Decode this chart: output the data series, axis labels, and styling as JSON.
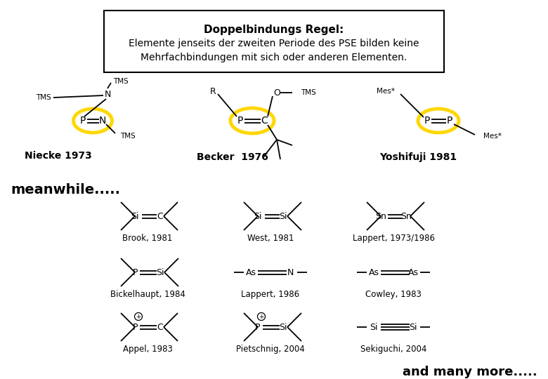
{
  "bg_color": "#ffffff",
  "fig_width": 7.8,
  "fig_height": 5.4,
  "box_title": "Doppelbindungs Regel:",
  "box_line1": "Elemente jenseits der zweiten Periode des PSE bilden keine",
  "box_line2": "Mehrfachbindungen mit sich oder anderen Elementen.",
  "meanwhile_text": "meanwhile.....",
  "and_many_more": "and many more.....",
  "labels_top": [
    "Niecke 1973",
    "Becker  1976",
    "Yoshifuji 1981"
  ],
  "labels_row1": [
    "Brook, 1981",
    "West, 1981",
    "Lappert, 1973/1986"
  ],
  "labels_row2": [
    "Bickelhaupt, 1984",
    "Lappert, 1986",
    "Cowley, 1983"
  ],
  "labels_row3": [
    "Appel, 1983",
    "Pietschnig, 2004",
    "Sekiguchi, 2004"
  ],
  "circle_color": "#FFD700",
  "circle_linewidth": 3.5
}
